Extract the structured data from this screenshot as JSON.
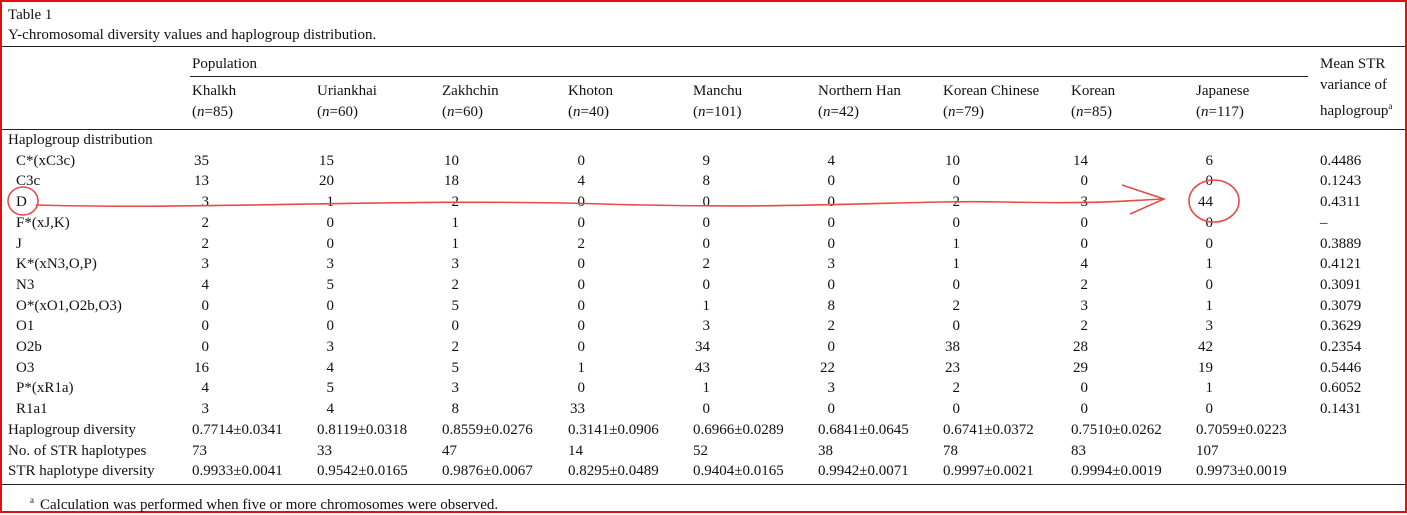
{
  "caption": {
    "label": "Table 1",
    "title": "Y-chromosomal diversity values and haplogroup distribution."
  },
  "table": {
    "group_header": "Population",
    "populations": [
      {
        "name": "Khalkh",
        "sample": [
          "(",
          "n",
          "=85)"
        ]
      },
      {
        "name": "Uriankhai",
        "sample": [
          "(",
          "n",
          "=60)"
        ]
      },
      {
        "name": "Zakhchin",
        "sample": [
          "(",
          "n",
          "=60)"
        ]
      },
      {
        "name": "Khoton",
        "sample": [
          "(",
          "n",
          "=40)"
        ]
      },
      {
        "name": "Manchu",
        "sample": [
          "(",
          "n",
          "=101)"
        ]
      },
      {
        "name": "Northern Han",
        "sample": [
          "(",
          "n",
          "=42)"
        ]
      },
      {
        "name": "Korean Chinese",
        "sample": [
          "(",
          "n",
          "=79)"
        ]
      },
      {
        "name": "Korean",
        "sample": [
          "(",
          "n",
          "=85)"
        ]
      },
      {
        "name": "Japanese",
        "sample": [
          "(",
          "n",
          "=117)"
        ]
      }
    ],
    "variance_header": {
      "text": "Mean STR variance of haplogroup",
      "note": "a"
    },
    "section": "Haplogroup distribution",
    "rows": [
      {
        "label": "C*(xC3c)",
        "values": [
          35,
          15,
          10,
          0,
          9,
          4,
          10,
          14,
          6
        ],
        "variance": "0.4486"
      },
      {
        "label": "C3c",
        "values": [
          13,
          20,
          18,
          4,
          8,
          0,
          0,
          0,
          0
        ],
        "variance": "0.1243"
      },
      {
        "label": "D",
        "values": [
          3,
          1,
          2,
          0,
          0,
          0,
          2,
          3,
          44
        ],
        "variance": "0.4311"
      },
      {
        "label": "F*(xJ,K)",
        "values": [
          2,
          0,
          1,
          0,
          0,
          0,
          0,
          0,
          0
        ],
        "variance": "–"
      },
      {
        "label": "J",
        "values": [
          2,
          0,
          1,
          2,
          0,
          0,
          1,
          0,
          0
        ],
        "variance": "0.3889"
      },
      {
        "label": "K*(xN3,O,P)",
        "values": [
          3,
          3,
          3,
          0,
          2,
          3,
          1,
          4,
          1
        ],
        "variance": "0.4121"
      },
      {
        "label": "N3",
        "values": [
          4,
          5,
          2,
          0,
          0,
          0,
          0,
          2,
          0
        ],
        "variance": "0.3091"
      },
      {
        "label": "O*(xO1,O2b,O3)",
        "values": [
          0,
          0,
          5,
          0,
          1,
          8,
          2,
          3,
          1
        ],
        "variance": "0.3079"
      },
      {
        "label": "O1",
        "values": [
          0,
          0,
          0,
          0,
          3,
          2,
          0,
          2,
          3
        ],
        "variance": "0.3629"
      },
      {
        "label": "O2b",
        "values": [
          0,
          3,
          2,
          0,
          34,
          0,
          38,
          28,
          42
        ],
        "variance": "0.2354"
      },
      {
        "label": "O3",
        "values": [
          16,
          4,
          5,
          1,
          43,
          22,
          23,
          29,
          19
        ],
        "variance": "0.5446"
      },
      {
        "label": "P*(xR1a)",
        "values": [
          4,
          5,
          3,
          0,
          1,
          3,
          2,
          0,
          1
        ],
        "variance": "0.6052"
      },
      {
        "label": "R1a1",
        "values": [
          3,
          4,
          8,
          33,
          0,
          0,
          0,
          0,
          0
        ],
        "variance": "0.1431"
      }
    ],
    "summary_rows": [
      {
        "label": "Haplogroup diversity",
        "values": [
          "0.7714±0.0341",
          "0.8119±0.0318",
          "0.8559±0.0276",
          "0.3141±0.0906",
          "0.6966±0.0289",
          "0.6841±0.0645",
          "0.6741±0.0372",
          "0.7510±0.0262",
          "0.7059±0.0223"
        ]
      },
      {
        "label": "No. of STR haplotypes",
        "values": [
          73,
          33,
          47,
          14,
          52,
          38,
          78,
          83,
          107
        ]
      },
      {
        "label": "STR haplotype diversity",
        "values": [
          "0.9933±0.0041",
          "0.9542±0.0165",
          "0.9876±0.0067",
          "0.8295±0.0489",
          "0.9404±0.0165",
          "0.9942±0.0071",
          "0.9997±0.0021",
          "0.9994±0.0019",
          "0.9973±0.0019"
        ]
      }
    ]
  },
  "footnote": {
    "mark": "a",
    "text": "Calculation was performed when five or more chromosomes were observed."
  }
}
